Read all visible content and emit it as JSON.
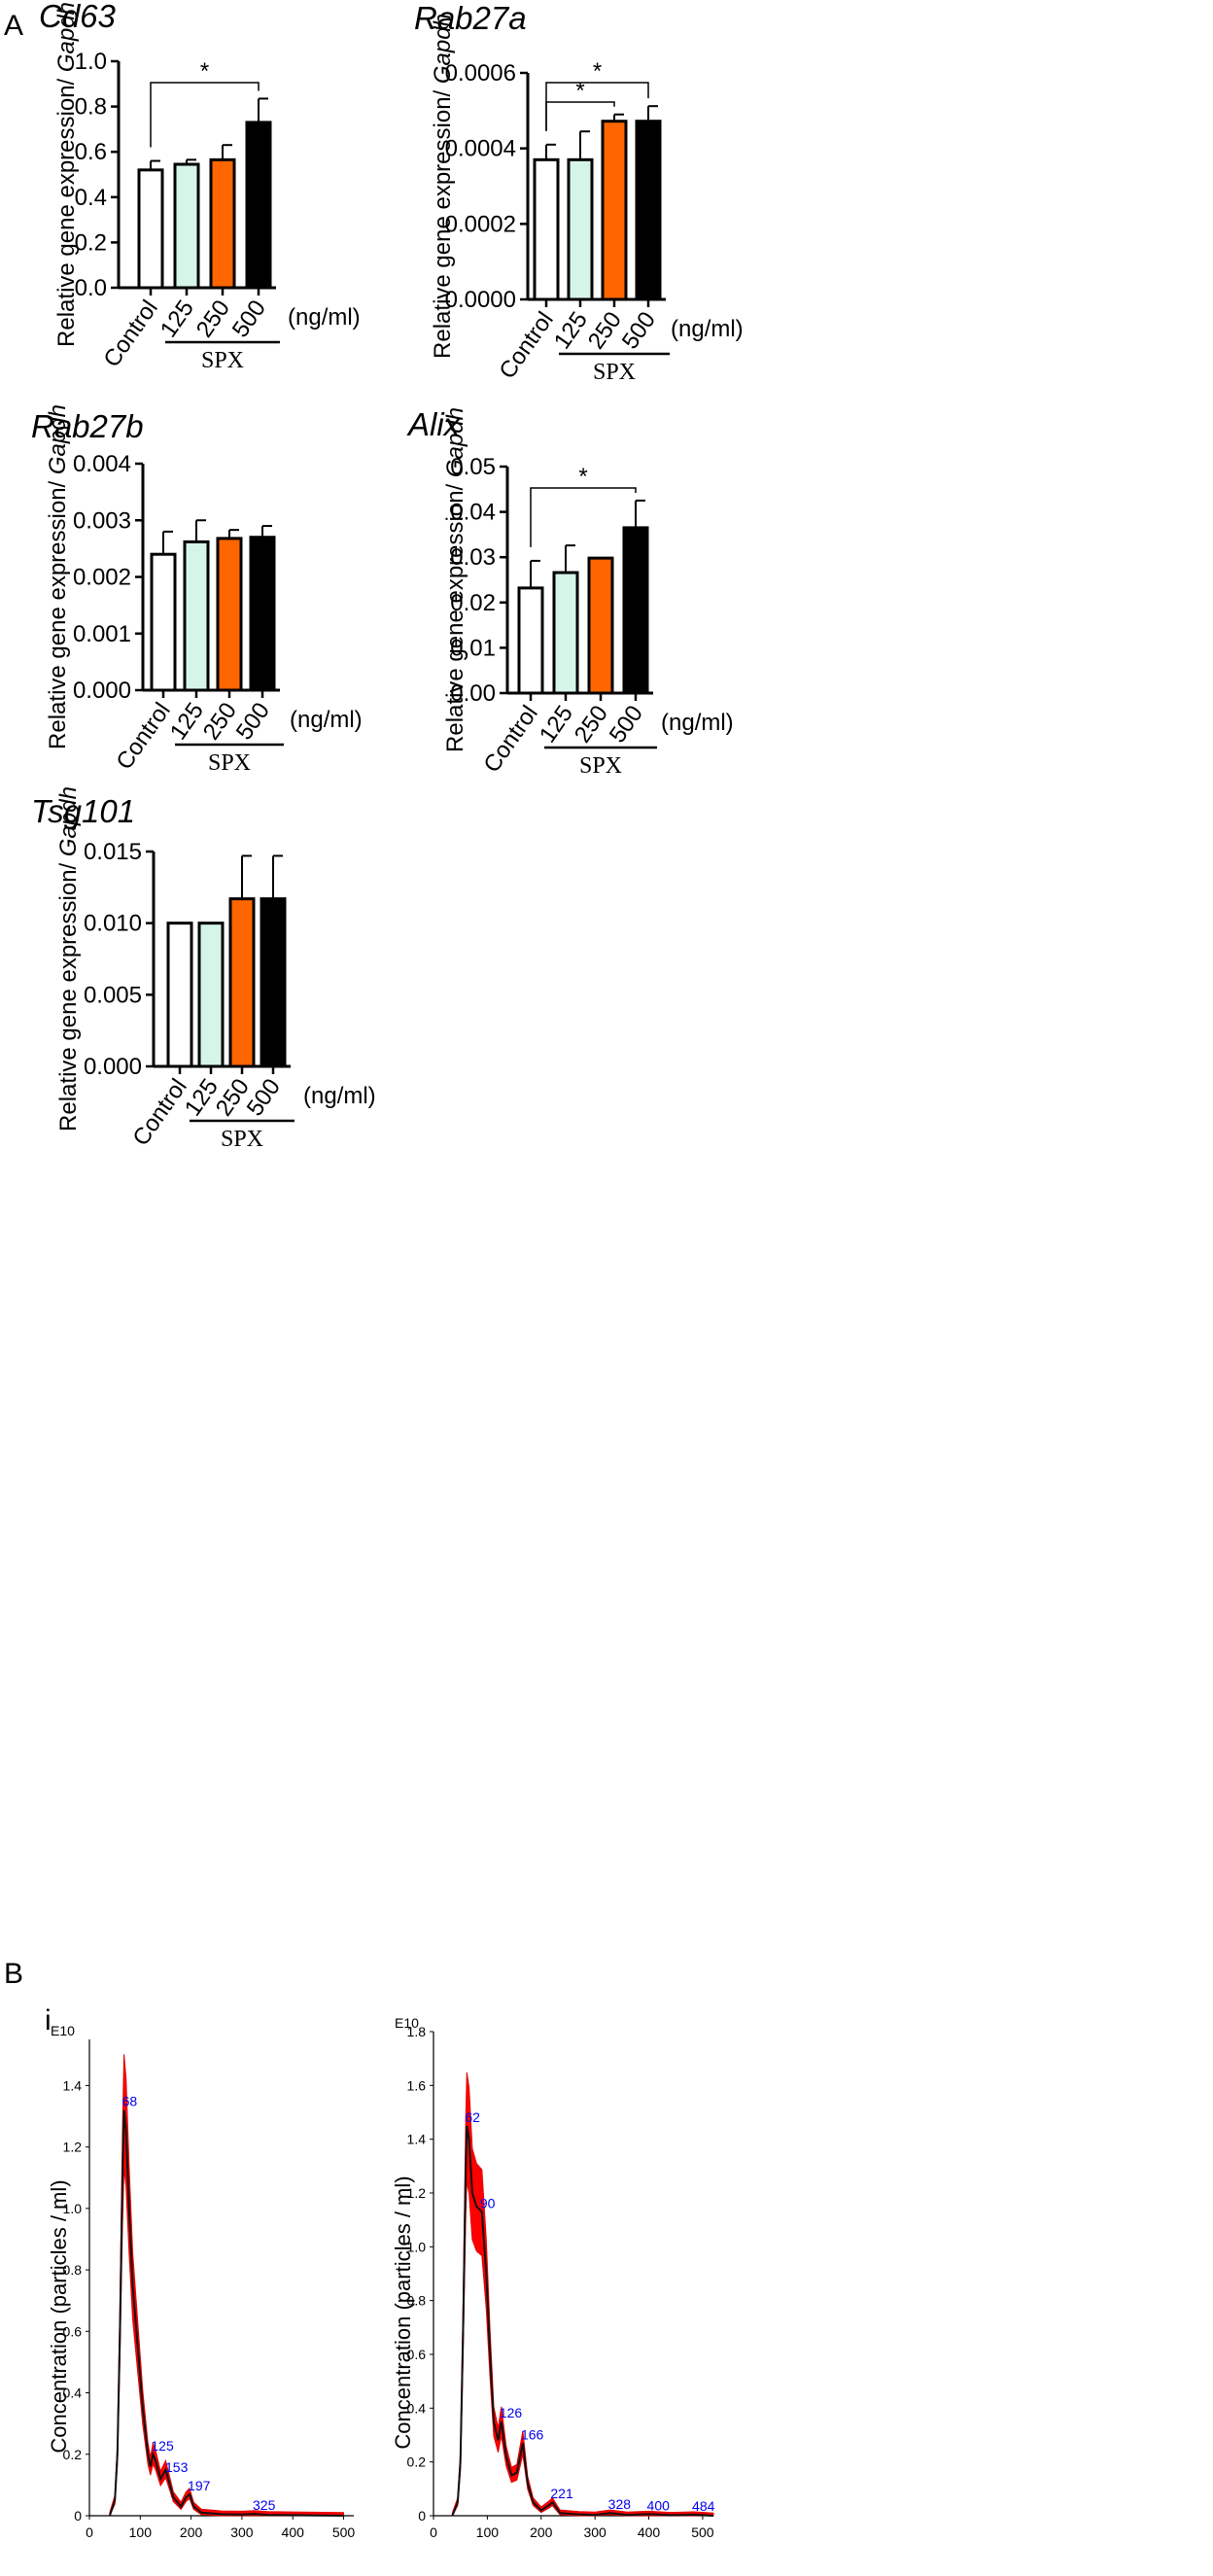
{
  "panel_labels": {
    "a": "A",
    "b": "B",
    "i": "i"
  },
  "common": {
    "ylabel_prefix": "Relative gene expression/ ",
    "ylabel_gene": "Gapdh",
    "unit": "(ng/ml)",
    "group_label": "SPX"
  },
  "colors": {
    "control": "#ffffff",
    "c125": "#d5f5e8",
    "c250": "#ff6600",
    "c500": "#000000"
  },
  "chart_data": [
    {
      "id": "cd63",
      "type": "bar",
      "title": "Cd63",
      "categories": [
        "Control",
        "125",
        "250",
        "500"
      ],
      "values": [
        0.52,
        0.545,
        0.565,
        0.73
      ],
      "errors": [
        0.04,
        0.02,
        0.065,
        0.105
      ],
      "ylim": [
        0,
        1.0
      ],
      "yticks": [
        "0.0",
        "0.2",
        "0.4",
        "0.6",
        "0.8",
        "1.0"
      ],
      "significance": [
        {
          "from": 0,
          "to": 3,
          "label": "*"
        }
      ]
    },
    {
      "id": "rab27a",
      "type": "bar",
      "title": "Rab27a",
      "categories": [
        "Control",
        "125",
        "250",
        "500"
      ],
      "values": [
        0.00037,
        0.00037,
        0.000472,
        0.000472
      ],
      "errors": [
        4e-05,
        7.5e-05,
        1.8e-05,
        4e-05
      ],
      "ylim": [
        0,
        0.0006
      ],
      "yticks": [
        "0.0000",
        "0.0002",
        "0.0004",
        "0.0006"
      ],
      "significance": [
        {
          "from": 0,
          "to": 2,
          "label": "*"
        },
        {
          "from": 0,
          "to": 3,
          "label": "*"
        }
      ]
    },
    {
      "id": "rab27b",
      "type": "bar",
      "title": "Rab27b",
      "categories": [
        "Control",
        "125",
        "250",
        "500"
      ],
      "values": [
        0.0024,
        0.00262,
        0.00268,
        0.0027
      ],
      "errors": [
        0.0004,
        0.00038,
        0.00015,
        0.0002
      ],
      "ylim": [
        0,
        0.004
      ],
      "yticks": [
        "0.000",
        "0.001",
        "0.002",
        "0.003",
        "0.004"
      ],
      "significance": []
    },
    {
      "id": "alix",
      "type": "bar",
      "title": "Alix",
      "categories": [
        "Control",
        "125",
        "250",
        "500"
      ],
      "values": [
        0.0232,
        0.0266,
        0.0298,
        0.0365
      ],
      "errors": [
        0.006,
        0.006,
        0.0,
        0.006
      ],
      "ylim": [
        0,
        0.05
      ],
      "yticks": [
        "0.00",
        "0.01",
        "0.02",
        "0.03",
        "0.04",
        "0.05"
      ],
      "significance": [
        {
          "from": 0,
          "to": 3,
          "label": "*"
        }
      ]
    },
    {
      "id": "tsg101",
      "type": "bar",
      "title": "Tsg101",
      "categories": [
        "Control",
        "125",
        "250",
        "500"
      ],
      "values": [
        0.01,
        0.01,
        0.0117,
        0.0117
      ],
      "errors": [
        0.0,
        0.0,
        0.003,
        0.003
      ],
      "ylim": [
        0,
        0.015
      ],
      "yticks": [
        "0.000",
        "0.005",
        "0.010",
        "0.015"
      ],
      "significance": []
    },
    {
      "id": "nta1",
      "type": "line",
      "ylabel": "Concentration (particles / ml)",
      "yexp": "E10",
      "ylim": [
        0,
        1.55
      ],
      "xlim": [
        0,
        520
      ],
      "yticks": [
        "0",
        "0.2",
        "0.4",
        "0.6",
        "0.8",
        "1.0",
        "1.2",
        "1.4"
      ],
      "xticks": [
        "0",
        "100",
        "200",
        "300",
        "400",
        "500"
      ],
      "peak_labels": [
        "68",
        "125",
        "153",
        "197",
        "325"
      ],
      "curve": [
        [
          40,
          0
        ],
        [
          50,
          0.05
        ],
        [
          55,
          0.2
        ],
        [
          60,
          0.6
        ],
        [
          65,
          1.1
        ],
        [
          68,
          1.32
        ],
        [
          72,
          1.25
        ],
        [
          78,
          1.0
        ],
        [
          85,
          0.75
        ],
        [
          95,
          0.55
        ],
        [
          105,
          0.35
        ],
        [
          115,
          0.2
        ],
        [
          120,
          0.16
        ],
        [
          125,
          0.2
        ],
        [
          130,
          0.18
        ],
        [
          140,
          0.12
        ],
        [
          150,
          0.15
        ],
        [
          155,
          0.12
        ],
        [
          165,
          0.06
        ],
        [
          180,
          0.03
        ],
        [
          190,
          0.06
        ],
        [
          197,
          0.07
        ],
        [
          205,
          0.03
        ],
        [
          220,
          0.01
        ],
        [
          260,
          0.005
        ],
        [
          300,
          0.004
        ],
        [
          325,
          0.006
        ],
        [
          350,
          0.003
        ],
        [
          400,
          0.002
        ],
        [
          500,
          0.0
        ]
      ],
      "peak_points": [
        [
          68,
          1.32
        ],
        [
          125,
          0.2
        ],
        [
          153,
          0.13
        ],
        [
          197,
          0.07
        ],
        [
          325,
          0.006
        ]
      ]
    },
    {
      "id": "nta2",
      "type": "line",
      "ylabel": "Concentration (particles / ml)",
      "yexp": "E10",
      "ylim": [
        0,
        1.8
      ],
      "xlim": [
        0,
        520
      ],
      "yticks": [
        "0",
        "0.2",
        "0.4",
        "0.6",
        "0.8",
        "1.0",
        "1.2",
        "1.4",
        "1.6",
        "1.8"
      ],
      "xticks": [
        "0",
        "100",
        "200",
        "300",
        "400",
        "500"
      ],
      "peak_labels": [
        "62",
        "90",
        "126",
        "166",
        "221",
        "328",
        "400",
        "484"
      ],
      "curve": [
        [
          35,
          0
        ],
        [
          45,
          0.05
        ],
        [
          50,
          0.2
        ],
        [
          55,
          0.7
        ],
        [
          60,
          1.3
        ],
        [
          62,
          1.45
        ],
        [
          66,
          1.4
        ],
        [
          72,
          1.2
        ],
        [
          80,
          1.15
        ],
        [
          90,
          1.13
        ],
        [
          98,
          0.9
        ],
        [
          105,
          0.6
        ],
        [
          112,
          0.35
        ],
        [
          120,
          0.28
        ],
        [
          126,
          0.35
        ],
        [
          135,
          0.22
        ],
        [
          145,
          0.15
        ],
        [
          155,
          0.16
        ],
        [
          166,
          0.27
        ],
        [
          175,
          0.12
        ],
        [
          185,
          0.05
        ],
        [
          200,
          0.02
        ],
        [
          215,
          0.04
        ],
        [
          221,
          0.05
        ],
        [
          235,
          0.01
        ],
        [
          270,
          0.005
        ],
        [
          300,
          0.003
        ],
        [
          328,
          0.01
        ],
        [
          360,
          0.003
        ],
        [
          400,
          0.006
        ],
        [
          440,
          0.002
        ],
        [
          484,
          0.004
        ],
        [
          520,
          0.0
        ]
      ],
      "peak_points": [
        [
          62,
          1.45
        ],
        [
          90,
          1.13
        ],
        [
          126,
          0.35
        ],
        [
          166,
          0.27
        ],
        [
          221,
          0.05
        ],
        [
          328,
          0.01
        ],
        [
          400,
          0.006
        ],
        [
          484,
          0.004
        ]
      ]
    }
  ]
}
